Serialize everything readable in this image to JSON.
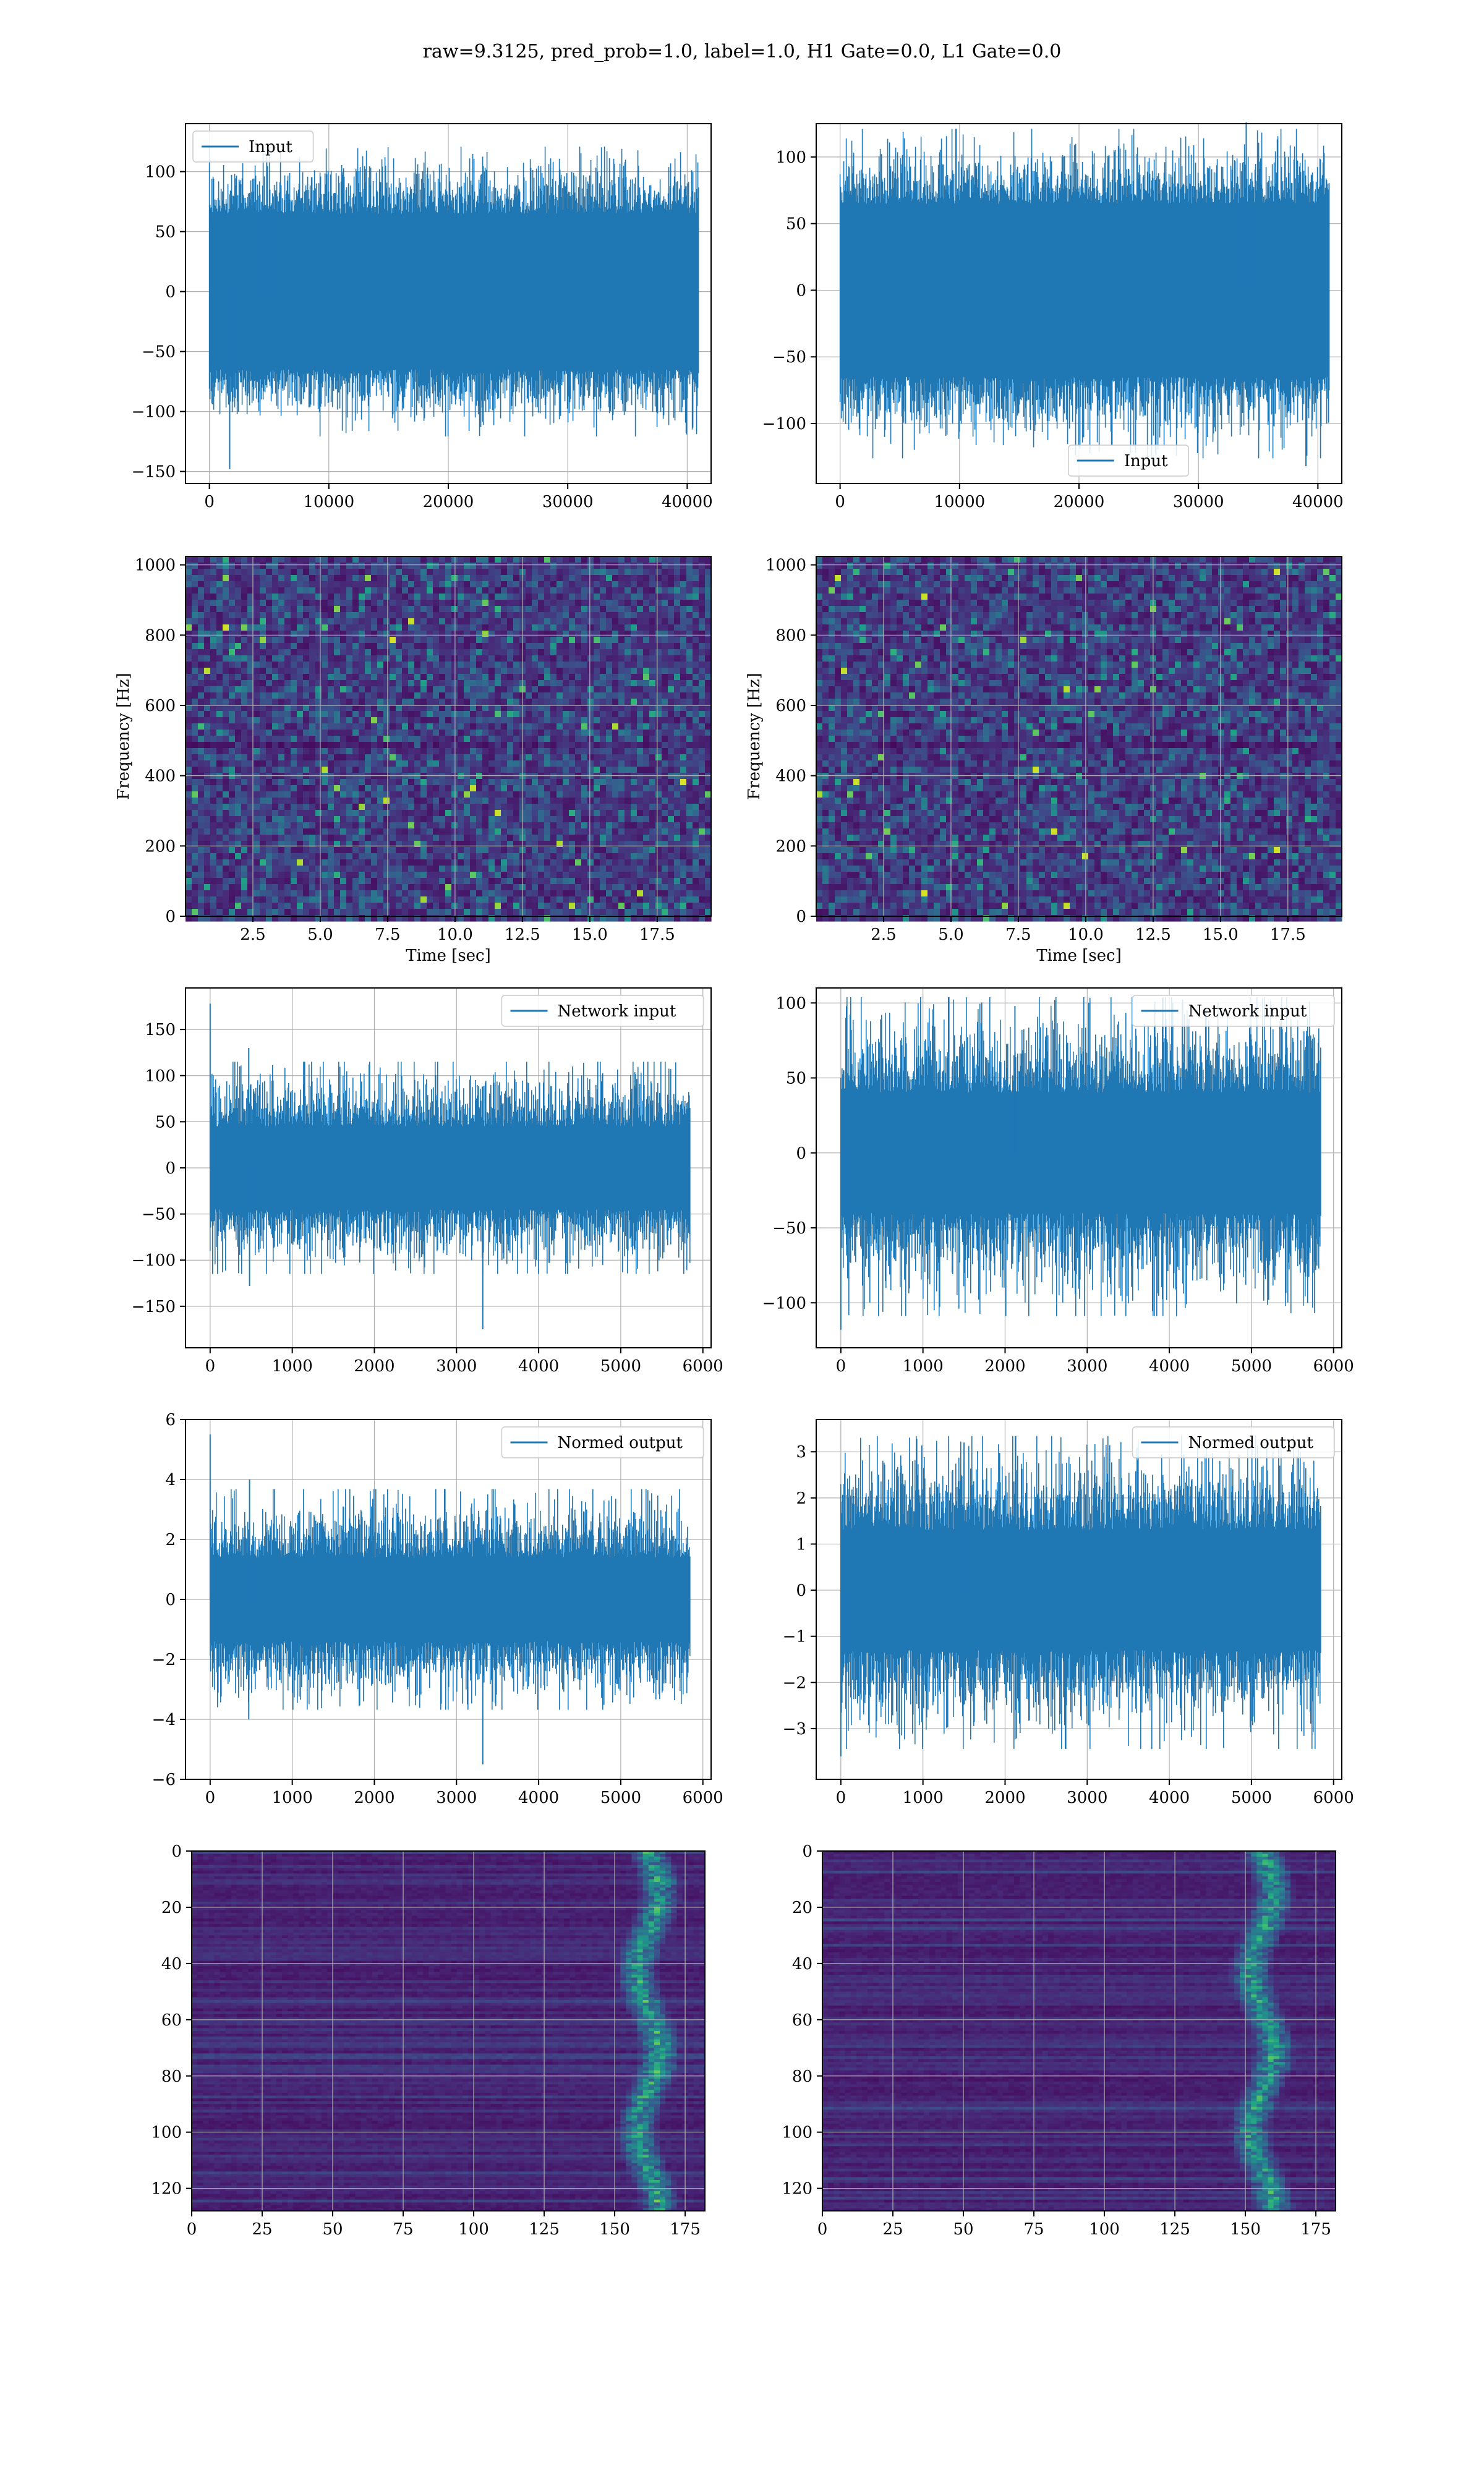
{
  "figure": {
    "suptitle": "raw=9.3125, pred_prob=1.0, label=1.0, H1 Gate=0.0, L1 Gate=0.0"
  },
  "colors": {
    "line": "#1f77b4",
    "axes": "#000000",
    "grid": "#b0b0b0",
    "viridis_low": "#440154",
    "viridis_mid": "#21918c",
    "viridis_high": "#fde725"
  },
  "chart_data": [
    {
      "id": "input-left",
      "type": "line",
      "title": "",
      "xlabel": "",
      "ylabel": "",
      "series": [
        {
          "name": "Input"
        }
      ],
      "legend": "top-left",
      "xlim": [
        -2000,
        42000
      ],
      "ylim": [
        -160,
        140
      ],
      "xticks": [
        0,
        10000,
        20000,
        30000,
        40000
      ],
      "yticks": [
        -150,
        -100,
        -50,
        0,
        50,
        100
      ],
      "signal": {
        "n": 40960,
        "x_start": 0,
        "x_end": 40960,
        "envelope": [
          -105,
          105
        ],
        "dense_band": [
          -65,
          65
        ],
        "spikes": [
          {
            "x": 1700,
            "y": -148
          },
          {
            "x": 4800,
            "y": 122
          }
        ]
      },
      "grid": true
    },
    {
      "id": "input-right",
      "type": "line",
      "title": "",
      "xlabel": "",
      "ylabel": "",
      "series": [
        {
          "name": "Input"
        }
      ],
      "legend": "bottom-center",
      "xlim": [
        -2000,
        42000
      ],
      "ylim": [
        -145,
        125
      ],
      "xticks": [
        0,
        10000,
        20000,
        30000,
        40000
      ],
      "yticks": [
        -100,
        -50,
        0,
        50,
        100
      ],
      "signal": {
        "n": 40960,
        "x_start": 0,
        "x_end": 40960,
        "envelope": [
          -110,
          105
        ],
        "dense_band": [
          -65,
          65
        ],
        "spikes": [
          {
            "x": 34000,
            "y": 126
          },
          {
            "x": 39000,
            "y": -132
          }
        ]
      },
      "grid": true
    },
    {
      "id": "spectrogram-left",
      "type": "heatmap",
      "title": "",
      "xlabel": "Time [sec]",
      "ylabel": "Frequency [Hz]",
      "xlim": [
        0,
        19.5
      ],
      "ylim": [
        0,
        1024
      ],
      "xticks": [
        2.5,
        5.0,
        7.5,
        10.0,
        12.5,
        15.0,
        17.5
      ],
      "yticks": [
        0,
        200,
        400,
        600,
        800,
        1000
      ],
      "colormap": "viridis",
      "grid": true
    },
    {
      "id": "spectrogram-right",
      "type": "heatmap",
      "title": "",
      "xlabel": "Time [sec]",
      "ylabel": "Frequency [Hz]",
      "xlim": [
        0,
        19.5
      ],
      "ylim": [
        0,
        1024
      ],
      "xticks": [
        2.5,
        5.0,
        7.5,
        10.0,
        12.5,
        15.0,
        17.5
      ],
      "yticks": [
        0,
        200,
        400,
        600,
        800,
        1000
      ],
      "colormap": "viridis",
      "grid": true
    },
    {
      "id": "network-input-left",
      "type": "line",
      "title": "",
      "xlabel": "",
      "ylabel": "",
      "series": [
        {
          "name": "Network input"
        }
      ],
      "legend": "top-right",
      "xlim": [
        -300,
        6100
      ],
      "ylim": [
        -195,
        195
      ],
      "xticks": [
        0,
        1000,
        2000,
        3000,
        4000,
        5000,
        6000
      ],
      "yticks": [
        -150,
        -100,
        -50,
        0,
        50,
        100,
        150
      ],
      "signal": {
        "n": 5840,
        "x_start": 0,
        "x_end": 5840,
        "envelope": [
          -100,
          100
        ],
        "dense_band": [
          -45,
          45
        ],
        "spikes": [
          {
            "x": 0,
            "y": 178
          },
          {
            "x": 3320,
            "y": -175
          },
          {
            "x": 470,
            "y": 130
          },
          {
            "x": 480,
            "y": -128
          }
        ]
      },
      "grid": true
    },
    {
      "id": "network-input-right",
      "type": "line",
      "title": "",
      "xlabel": "",
      "ylabel": "",
      "series": [
        {
          "name": "Network input"
        }
      ],
      "legend": "top-right",
      "xlim": [
        -300,
        6100
      ],
      "ylim": [
        -130,
        110
      ],
      "xticks": [
        0,
        1000,
        2000,
        3000,
        4000,
        5000,
        6000
      ],
      "yticks": [
        -100,
        -50,
        0,
        50,
        100
      ],
      "signal": {
        "n": 5840,
        "x_start": 0,
        "x_end": 5840,
        "envelope": [
          -95,
          90
        ],
        "dense_band": [
          -40,
          40
        ],
        "spikes": [
          {
            "x": 0,
            "y": -118
          },
          {
            "x": 2120,
            "y": 98
          }
        ]
      },
      "grid": true
    },
    {
      "id": "normed-output-left",
      "type": "line",
      "title": "",
      "xlabel": "",
      "ylabel": "",
      "series": [
        {
          "name": "Normed output"
        }
      ],
      "legend": "top-right",
      "xlim": [
        -300,
        6100
      ],
      "ylim": [
        -6,
        6
      ],
      "xticks": [
        0,
        1000,
        2000,
        3000,
        4000,
        5000,
        6000
      ],
      "yticks": [
        -6,
        -4,
        -2,
        0,
        2,
        4,
        6
      ],
      "signal": {
        "n": 5840,
        "x_start": 0,
        "x_end": 5840,
        "envelope": [
          -3.2,
          3.2
        ],
        "dense_band": [
          -1.4,
          1.4
        ],
        "spikes": [
          {
            "x": 0,
            "y": 5.5
          },
          {
            "x": 3320,
            "y": -5.5
          },
          {
            "x": 470,
            "y": -4.0
          },
          {
            "x": 480,
            "y": 4.0
          }
        ]
      },
      "grid": true
    },
    {
      "id": "normed-output-right",
      "type": "line",
      "title": "",
      "xlabel": "",
      "ylabel": "",
      "series": [
        {
          "name": "Normed output"
        }
      ],
      "legend": "top-right",
      "xlim": [
        -300,
        6100
      ],
      "ylim": [
        -4.1,
        3.7
      ],
      "xticks": [
        0,
        1000,
        2000,
        3000,
        4000,
        5000,
        6000
      ],
      "yticks": [
        -3,
        -2,
        -1,
        0,
        1,
        2,
        3
      ],
      "signal": {
        "n": 5840,
        "x_start": 0,
        "x_end": 5840,
        "envelope": [
          -3.0,
          2.9
        ],
        "dense_band": [
          -1.3,
          1.3
        ],
        "spikes": [
          {
            "x": 0,
            "y": -3.6
          },
          {
            "x": 1500,
            "y": 3.2
          }
        ]
      },
      "grid": true
    },
    {
      "id": "feature-map-left",
      "type": "heatmap",
      "title": "",
      "xlabel": "",
      "ylabel": "",
      "xlim": [
        0,
        182
      ],
      "ylim": [
        128,
        0
      ],
      "xticks": [
        0,
        25,
        50,
        75,
        100,
        125,
        150,
        175
      ],
      "yticks": [
        0,
        20,
        40,
        60,
        80,
        100,
        120
      ],
      "colormap": "viridis",
      "bright_band_x": [
        152,
        172
      ],
      "grid": true
    },
    {
      "id": "feature-map-right",
      "type": "heatmap",
      "title": "",
      "xlabel": "",
      "ylabel": "",
      "xlim": [
        0,
        182
      ],
      "ylim": [
        128,
        0
      ],
      "xticks": [
        0,
        25,
        50,
        75,
        100,
        125,
        150,
        175
      ],
      "yticks": [
        0,
        20,
        40,
        60,
        80,
        100,
        120
      ],
      "colormap": "viridis",
      "bright_band_x": [
        142,
        170
      ],
      "grid": true
    }
  ]
}
